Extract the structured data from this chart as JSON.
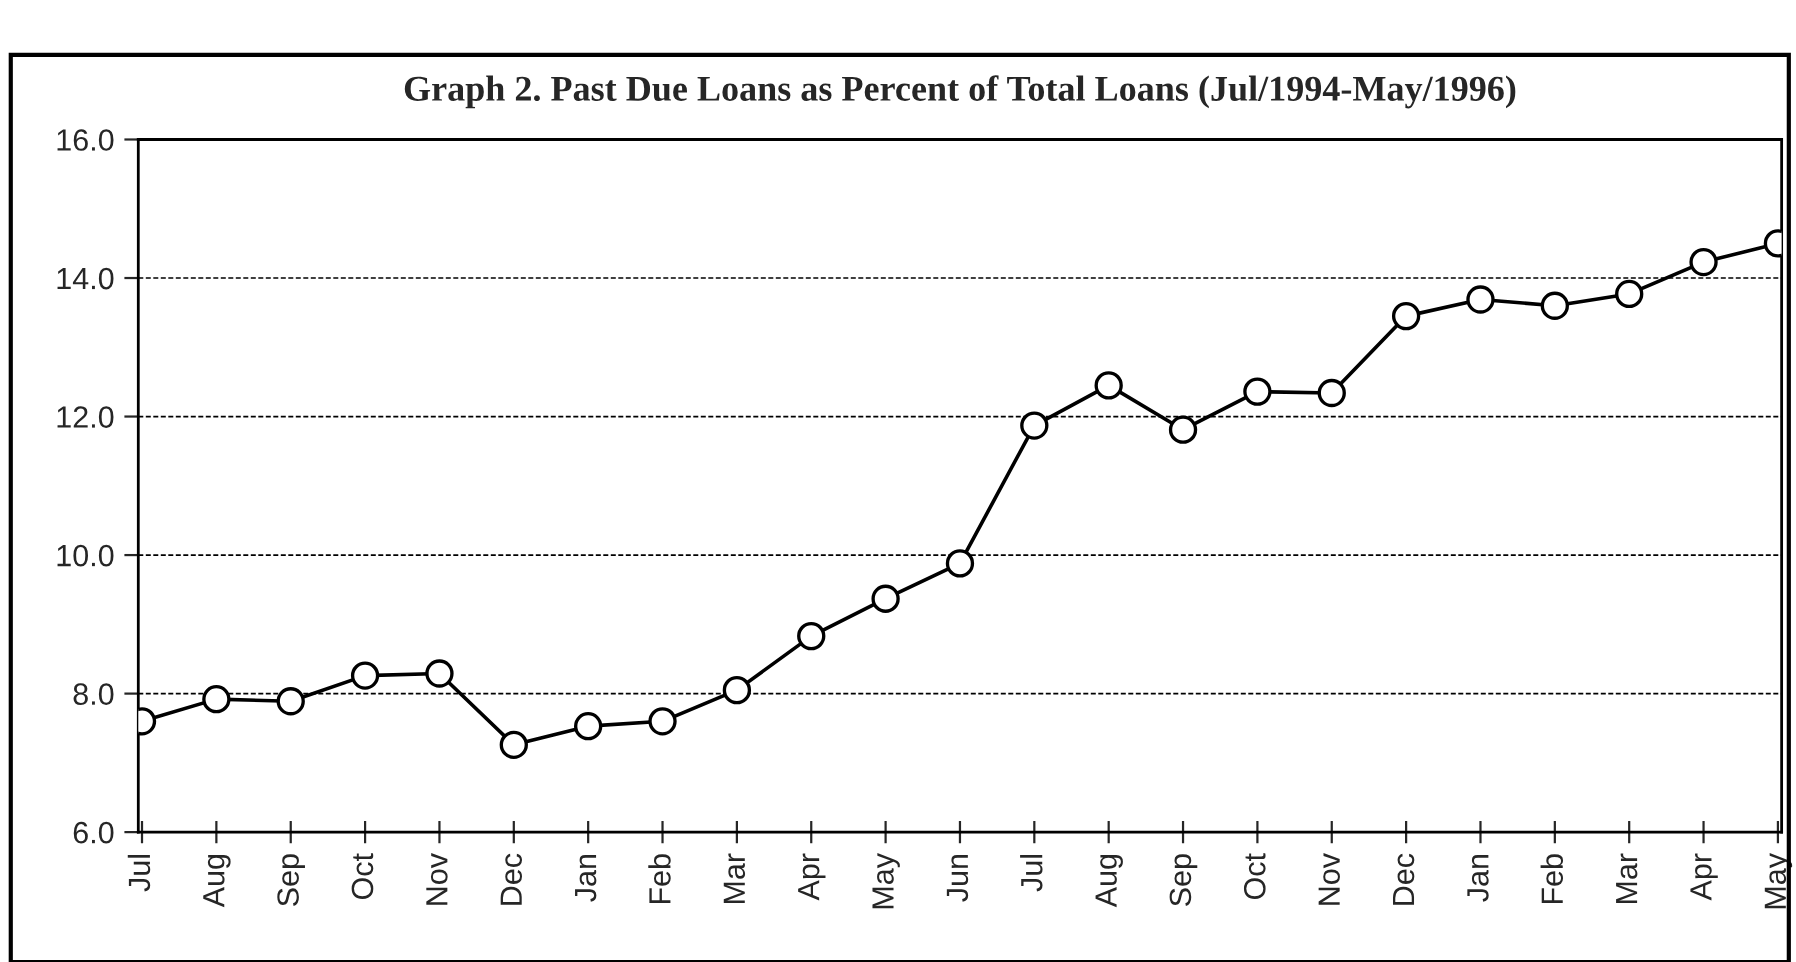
{
  "chart_data": {
    "type": "line",
    "title": "Graph 2. Past Due Loans as Percent of Total Loans (Jul/1994-May/1996)",
    "categories": [
      "Jul",
      "Aug",
      "Sep",
      "Oct",
      "Nov",
      "Dec",
      "Jan",
      "Feb",
      "Mar",
      "Apr",
      "May",
      "Jun",
      "Jul",
      "Aug",
      "Sep",
      "Oct",
      "Nov",
      "Dec",
      "Jan",
      "Feb",
      "Mar",
      "Apr",
      "May"
    ],
    "series": [
      {
        "color": "#000000",
        "values": [
          7.6,
          7.92,
          7.89,
          8.26,
          8.29,
          7.26,
          7.53,
          7.6,
          8.05,
          8.83,
          9.37,
          9.88,
          11.87,
          12.45,
          11.81,
          12.36,
          12.34,
          13.45,
          13.69,
          13.6,
          13.77,
          14.23,
          14.5
        ]
      }
    ],
    "ylim": [
      6,
      16
    ],
    "yticks": [
      {
        "value": 6,
        "label": "6.0"
      },
      {
        "value": 8,
        "label": "8.0"
      },
      {
        "value": 10,
        "label": "10.0"
      },
      {
        "value": 12,
        "label": "12.0"
      },
      {
        "value": 14,
        "label": "14.0"
      },
      {
        "value": 16,
        "label": "16.0"
      }
    ],
    "grid": "y",
    "marker": "circle",
    "line_style": "solid"
  }
}
